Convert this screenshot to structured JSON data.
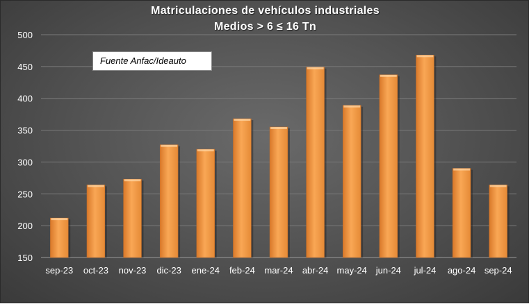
{
  "chart_data": {
    "type": "bar",
    "title": "Matriculaciones de vehículos industriales",
    "subtitle": "Medios > 6 ≤ 16 Tn",
    "annotation": "Fuente Anfac/Ideauto",
    "categories": [
      "sep-23",
      "oct-23",
      "nov-23",
      "dic-23",
      "ene-24",
      "feb-24",
      "mar-24",
      "abr-24",
      "may-24",
      "jun-24",
      "jul-24",
      "ago-24",
      "sep-24"
    ],
    "values": [
      212,
      264,
      273,
      327,
      320,
      368,
      355,
      449,
      389,
      437,
      468,
      290,
      264
    ],
    "ylim": [
      150,
      500
    ],
    "yticks": [
      150,
      200,
      250,
      300,
      350,
      400,
      450,
      500
    ],
    "xlabel": "",
    "ylabel": "",
    "grid": true,
    "bar_color": "#f7a049",
    "background": "#555555"
  }
}
